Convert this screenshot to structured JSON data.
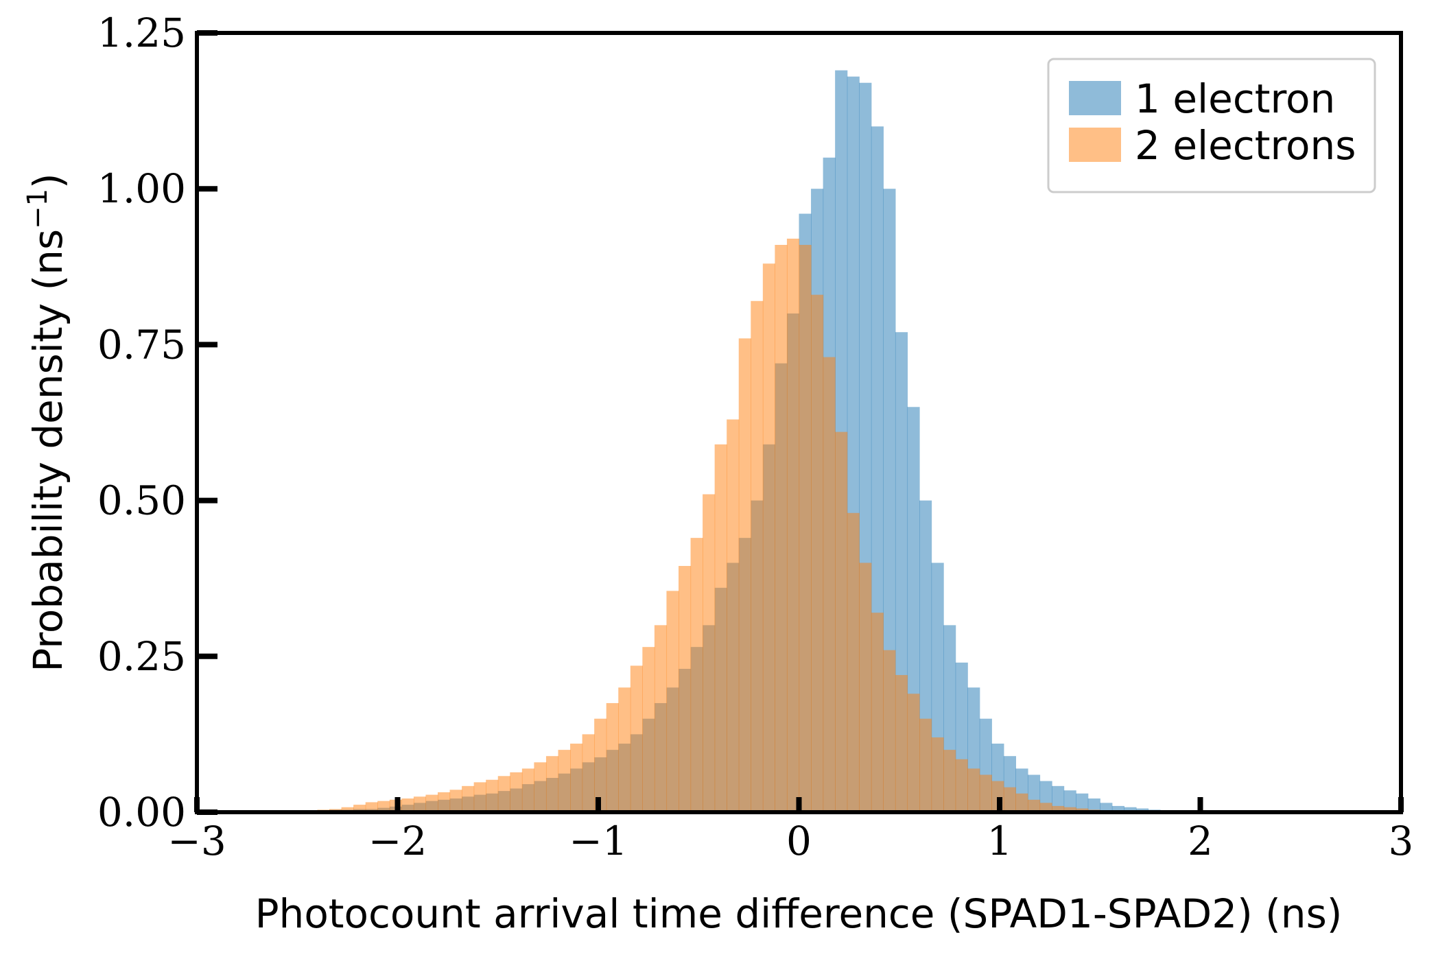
{
  "chart_data": {
    "type": "histogram",
    "title": "",
    "xlabel": "Photocount arrival time difference (SPAD1-SPAD2) (ns)",
    "ylabel": "Probability density (ns",
    "ylabel_sup": "−1",
    "ylabel_end": ")",
    "xlim": [
      -3,
      3
    ],
    "ylim": [
      0,
      1.25
    ],
    "xticks": [
      -3,
      -2,
      -1,
      0,
      1,
      2,
      3
    ],
    "xtick_labels": [
      "−3",
      "−2",
      "−1",
      "0",
      "1",
      "2",
      "3"
    ],
    "yticks": [
      0,
      0.25,
      0.5,
      0.75,
      1.0,
      1.25
    ],
    "ytick_labels": [
      "0.00",
      "0.25",
      "0.50",
      "0.75",
      "1.00",
      "1.25"
    ],
    "grid": false,
    "legend_position": "top-right",
    "bin_start": -3.0,
    "bin_width": 0.06,
    "series": [
      {
        "name": "1 electron",
        "color": "#1f77b4",
        "opacity": 0.5,
        "values": [
          0,
          0,
          0,
          0,
          0,
          0.002,
          0.002,
          0.002,
          0.003,
          0.002,
          0.003,
          0.004,
          0.004,
          0.005,
          0.005,
          0.007,
          0.009,
          0.012,
          0.015,
          0.018,
          0.02,
          0.022,
          0.025,
          0.028,
          0.03,
          0.034,
          0.038,
          0.045,
          0.05,
          0.055,
          0.062,
          0.07,
          0.08,
          0.088,
          0.1,
          0.11,
          0.125,
          0.15,
          0.175,
          0.2,
          0.23,
          0.265,
          0.3,
          0.36,
          0.4,
          0.44,
          0.5,
          0.59,
          0.72,
          0.8,
          0.96,
          1.0,
          1.05,
          1.19,
          1.18,
          1.17,
          1.1,
          1.0,
          0.77,
          0.65,
          0.5,
          0.4,
          0.3,
          0.24,
          0.2,
          0.15,
          0.11,
          0.09,
          0.07,
          0.06,
          0.05,
          0.042,
          0.035,
          0.03,
          0.022,
          0.015,
          0.01,
          0.008,
          0.006,
          0.004,
          0.003,
          0.002,
          0.002,
          0.001,
          0,
          0,
          0,
          0,
          0,
          0,
          0,
          0,
          0,
          0,
          0,
          0,
          0,
          0,
          0,
          0
        ]
      },
      {
        "name": "2 electrons",
        "color": "#ff7f0e",
        "opacity": 0.5,
        "values": [
          0,
          0,
          0,
          0,
          0,
          0,
          0.001,
          0.002,
          0.002,
          0.003,
          0.004,
          0.005,
          0.008,
          0.012,
          0.016,
          0.018,
          0.02,
          0.022,
          0.025,
          0.028,
          0.032,
          0.036,
          0.042,
          0.048,
          0.052,
          0.058,
          0.064,
          0.07,
          0.08,
          0.09,
          0.1,
          0.11,
          0.125,
          0.15,
          0.175,
          0.2,
          0.235,
          0.265,
          0.3,
          0.355,
          0.395,
          0.44,
          0.51,
          0.59,
          0.63,
          0.76,
          0.82,
          0.88,
          0.91,
          0.92,
          0.91,
          0.83,
          0.73,
          0.61,
          0.48,
          0.4,
          0.32,
          0.26,
          0.22,
          0.19,
          0.15,
          0.12,
          0.1,
          0.085,
          0.07,
          0.06,
          0.05,
          0.04,
          0.03,
          0.02,
          0.015,
          0.01,
          0.008,
          0.006,
          0.004,
          0.003,
          0.002,
          0.002,
          0.001,
          0.001,
          0,
          0,
          0,
          0,
          0,
          0,
          0,
          0,
          0,
          0,
          0,
          0,
          0,
          0,
          0,
          0,
          0,
          0,
          0,
          0
        ]
      }
    ]
  }
}
